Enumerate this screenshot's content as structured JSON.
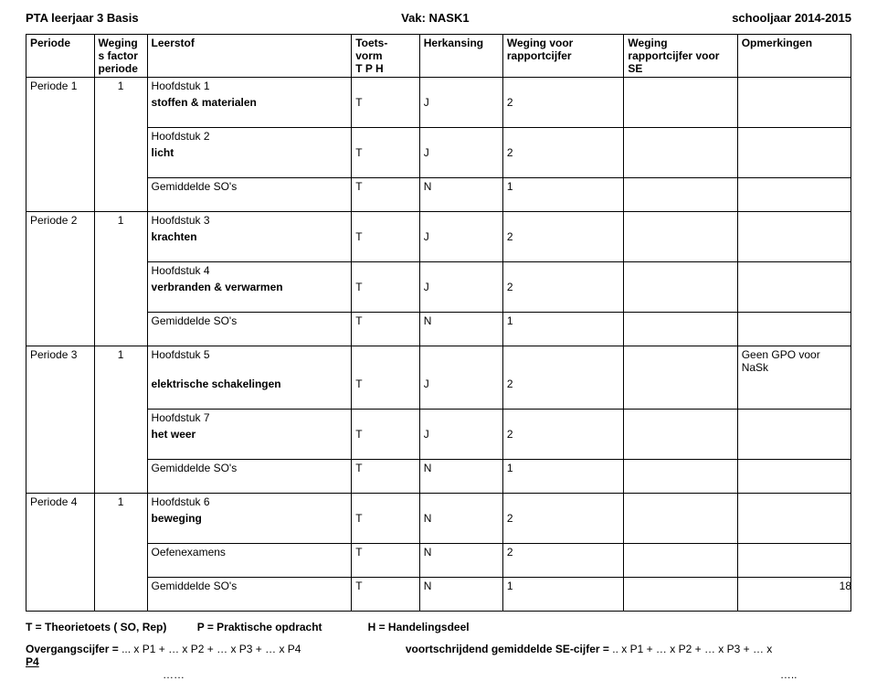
{
  "header": {
    "left": "PTA leerjaar  3  Basis",
    "center_label": "Vak:",
    "center_value": "NASK1",
    "right": "schooljaar 2014-2015"
  },
  "columns": {
    "periode": "Periode",
    "weging": "Weging s factor periode",
    "leerstof": "Leerstof",
    "toets": "Toets-vorm\nT P H",
    "toets_line1": "Toets-",
    "toets_line2": "vorm",
    "toets_line3": "T P H",
    "herkansing": "Herkansing",
    "wvr": "Weging voor rapportcijfer",
    "wse": "Weging rapportcijfer voor SE",
    "opm": "Opmerkingen"
  },
  "periods": [
    {
      "name": "Periode 1",
      "factor": "1",
      "rows": [
        {
          "leerstof_line1": "Hoofdstuk 1",
          "leerstof_line2": "stoffen & materialen",
          "t": "T",
          "h": "J",
          "w": "2"
        },
        {
          "leerstof_line1": "Hoofdstuk 2",
          "leerstof_line2": "licht",
          "t": "T",
          "h": "J",
          "w": "2"
        },
        {
          "leerstof_line1": "Gemiddelde SO's",
          "leerstof_line2": "",
          "t": "T",
          "h": "N",
          "w": "1"
        }
      ]
    },
    {
      "name": "Periode 2",
      "factor": "1",
      "rows": [
        {
          "leerstof_line1": "Hoofdstuk 3",
          "leerstof_line2": "krachten",
          "t": "T",
          "h": "J",
          "w": "2"
        },
        {
          "leerstof_line1": "Hoofdstuk 4",
          "leerstof_line2": "verbranden & verwarmen",
          "t": "T",
          "h": "J",
          "w": "2"
        },
        {
          "leerstof_line1": "Gemiddelde SO's",
          "leerstof_line2": "",
          "t": "T",
          "h": "N",
          "w": "1"
        }
      ]
    },
    {
      "name": "Periode 3",
      "factor": "1",
      "rows": [
        {
          "leerstof_line1": "Hoofdstuk 5",
          "leerstof_line2": "elektrische schakelingen",
          "t": "T",
          "h": "J",
          "w": "2",
          "opm": "Geen GPO voor NaSk"
        },
        {
          "leerstof_line1": "Hoofdstuk 7",
          "leerstof_line2": "het weer",
          "t": "T",
          "h": "J",
          "w": "2"
        },
        {
          "leerstof_line1": "Gemiddelde SO's",
          "leerstof_line2": "",
          "t": "T",
          "h": "N",
          "w": "1"
        }
      ]
    },
    {
      "name": "Periode 4",
      "factor": "1",
      "rows": [
        {
          "leerstof_line1": "Hoofdstuk 6",
          "leerstof_line2": "beweging",
          "t": "T",
          "h": "N",
          "w": "2"
        },
        {
          "leerstof_line1": "Oefenexamens",
          "leerstof_line2": "",
          "t": "T",
          "h": "N",
          "w": "2"
        },
        {
          "leerstof_line1": "Gemiddelde SO's",
          "leerstof_line2": "",
          "t": "T",
          "h": "N",
          "w": "1"
        }
      ]
    }
  ],
  "footer": {
    "line1_a": "T = Theorietoets ( SO, Rep)",
    "line1_b": "P = Praktische opdracht",
    "line1_c": "H = Handelingsdeel",
    "line2_left_a": "Overgangscijfer =",
    "line2_left_b": "... x P1 +  … x P2 + … x P3 +  … x P4",
    "line2_right_a": "voortschrijdend gemiddelde SE-cijfer =",
    "line2_right_b": ".. x P1 +  … x P2 + … x P3 +  … x",
    "line3_left": "P4",
    "line4_left_dots": "……",
    "line4_right_dots": "…..",
    "pagenum": "18"
  }
}
